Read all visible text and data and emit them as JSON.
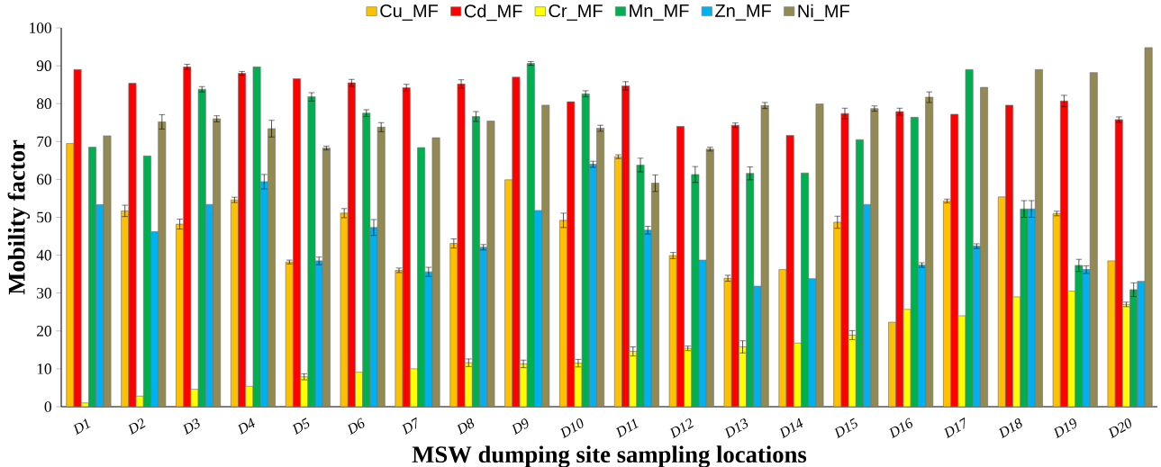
{
  "chart_data": {
    "type": "bar",
    "xlabel": "MSW dumping site sampling locations",
    "ylabel": "Mobility factor",
    "categories": [
      "D1",
      "D2",
      "D3",
      "D4",
      "D5",
      "D6",
      "D7",
      "D8",
      "D9",
      "D10",
      "D11",
      "D12",
      "D13",
      "D14",
      "D15",
      "D16",
      "D17",
      "D18",
      "D19",
      "D20"
    ],
    "ylim": [
      0,
      100
    ],
    "yticks": [
      0,
      10,
      20,
      30,
      40,
      50,
      60,
      70,
      80,
      90,
      100
    ],
    "grid": false,
    "legend": "top",
    "series": [
      {
        "name": "Cu_MF",
        "color": "#ffc000",
        "values": [
          69.5,
          51.7,
          48.2,
          54.6,
          38.2,
          51.1,
          36,
          43.1,
          59.9,
          49.2,
          66,
          39.9,
          33.9,
          36.2,
          48.7,
          22.3,
          54.3,
          55.4,
          51,
          38.5
        ],
        "errors": [
          null,
          1.5,
          1.3,
          0.7,
          0.5,
          1.2,
          0.6,
          1.2,
          null,
          1.9,
          0.5,
          0.8,
          0.8,
          null,
          1.6,
          null,
          0.5,
          null,
          0.6,
          null
        ]
      },
      {
        "name": "Cd_MF",
        "color": "#ff0000",
        "values": [
          89,
          85.4,
          89.7,
          88,
          86.6,
          85.5,
          84.2,
          85.2,
          87,
          80.5,
          84.7,
          74,
          74.3,
          71.6,
          77.4,
          77.9,
          77.2,
          79.6,
          80.7,
          75.8
        ],
        "errors": [
          null,
          null,
          0.7,
          0.5,
          null,
          0.9,
          0.9,
          1.1,
          null,
          null,
          1.1,
          null,
          0.6,
          null,
          1.4,
          0.9,
          null,
          null,
          1.5,
          0.7
        ]
      },
      {
        "name": "Cr_MF",
        "color": "#ffff00",
        "values": [
          1,
          2.8,
          4.6,
          5.4,
          7.9,
          9.1,
          10,
          11.6,
          11.3,
          11.5,
          14.6,
          15.4,
          15.8,
          16.8,
          18.9,
          25.7,
          24,
          29,
          30.5,
          27
        ],
        "errors": [
          null,
          null,
          null,
          null,
          0.8,
          null,
          null,
          1,
          1,
          1,
          1.2,
          0.6,
          1.6,
          null,
          1.2,
          null,
          null,
          null,
          null,
          0.6
        ]
      },
      {
        "name": "Mn_MF",
        "color": "#00b050",
        "values": [
          68.5,
          66.2,
          83.8,
          89.7,
          81.8,
          77.5,
          68.4,
          76.6,
          90.6,
          82.6,
          63.8,
          61.3,
          61.6,
          61.7,
          70.5,
          76.4,
          89,
          52.2,
          37.3,
          30.9
        ],
        "errors": [
          null,
          null,
          0.7,
          null,
          1.1,
          0.9,
          null,
          1.3,
          0.5,
          0.8,
          1.8,
          2.1,
          1.7,
          null,
          null,
          null,
          null,
          2.2,
          1.6,
          1.8
        ]
      },
      {
        "name": "Zn_MF",
        "color": "#00b0f0",
        "values": [
          53.3,
          46.2,
          53.4,
          59.4,
          38.5,
          47.3,
          35.6,
          42.1,
          51.8,
          64,
          46.6,
          38.7,
          31.8,
          33.8,
          53.4,
          37.4,
          42.4,
          52.2,
          36.2,
          33.1
        ],
        "errors": [
          null,
          null,
          null,
          1.9,
          1,
          2.1,
          1.2,
          0.7,
          null,
          0.8,
          1,
          null,
          null,
          null,
          null,
          0.6,
          0.6,
          2.2,
          1,
          null
        ]
      },
      {
        "name": "Ni_MF",
        "color": "#938953",
        "values": [
          71.5,
          75.2,
          76,
          73.4,
          68.3,
          73.8,
          71,
          75.4,
          79.6,
          73.5,
          59,
          68,
          79.5,
          79.9,
          78.7,
          81.7,
          84.3,
          89,
          88.2,
          94.8
        ],
        "errors": [
          null,
          1.9,
          0.8,
          2.2,
          0.5,
          1.2,
          null,
          null,
          null,
          0.8,
          2.2,
          0.5,
          0.8,
          null,
          0.7,
          1.4,
          null,
          null,
          null,
          null
        ]
      }
    ]
  }
}
